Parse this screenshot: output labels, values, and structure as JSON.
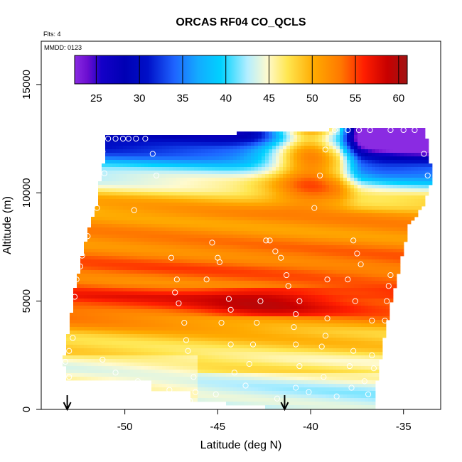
{
  "chart_data": {
    "type": "heatmap",
    "title": "ORCAS RF04 CO_QCLS",
    "flights_label": "Flts: 4",
    "date_label": "MMDD: 0123",
    "xlabel": "Latitude (deg N)",
    "ylabel": "Altitude (m)",
    "xlim": [
      -54.5,
      -33.0
    ],
    "ylim": [
      0,
      17000
    ],
    "x_ticks": [
      -50,
      -45,
      -40,
      -35
    ],
    "x_tick_labels": [
      "-50",
      "-45",
      "-40",
      "-35"
    ],
    "y_ticks": [
      0,
      5000,
      10000,
      15000
    ],
    "y_tick_labels": [
      "0",
      "5000",
      "10000",
      "15000"
    ],
    "colorbar": {
      "range": [
        22.5,
        61
      ],
      "ticks": [
        25,
        30,
        35,
        40,
        45,
        50,
        55,
        60
      ],
      "tick_labels": [
        "25",
        "30",
        "35",
        "40",
        "45",
        "50",
        "55",
        "60"
      ]
    },
    "arrows_x": [
      -53.1,
      -41.4
    ],
    "grid": false,
    "aircraft_obs": [
      {
        "x": -50.9,
        "y": 12500
      },
      {
        "x": -50.5,
        "y": 12500
      },
      {
        "x": -50.1,
        "y": 12500
      },
      {
        "x": -49.8,
        "y": 12500
      },
      {
        "x": -49.4,
        "y": 12500
      },
      {
        "x": -48.9,
        "y": 12500
      },
      {
        "x": -51.2,
        "y": 11900
      },
      {
        "x": -48.5,
        "y": 11800
      },
      {
        "x": -51.1,
        "y": 10900
      },
      {
        "x": -48.3,
        "y": 10800
      },
      {
        "x": -39.5,
        "y": 10800
      },
      {
        "x": -51.5,
        "y": 9300
      },
      {
        "x": -49.5,
        "y": 9200
      },
      {
        "x": -39.8,
        "y": 9300
      },
      {
        "x": -39.2,
        "y": 12000
      },
      {
        "x": -38.7,
        "y": 12900
      },
      {
        "x": -38.0,
        "y": 12900
      },
      {
        "x": -37.4,
        "y": 12900
      },
      {
        "x": -36.8,
        "y": 12900
      },
      {
        "x": -35.7,
        "y": 12900
      },
      {
        "x": -35.0,
        "y": 12900
      },
      {
        "x": -34.4,
        "y": 12900
      },
      {
        "x": -33.9,
        "y": 11800
      },
      {
        "x": -33.7,
        "y": 10800
      },
      {
        "x": -52.0,
        "y": 8000
      },
      {
        "x": -52.3,
        "y": 7100
      },
      {
        "x": -52.4,
        "y": 6600
      },
      {
        "x": -52.6,
        "y": 6000
      },
      {
        "x": -52.7,
        "y": 5200
      },
      {
        "x": -47.5,
        "y": 7000
      },
      {
        "x": -45.3,
        "y": 7700
      },
      {
        "x": -45.0,
        "y": 7000
      },
      {
        "x": -44.9,
        "y": 6800
      },
      {
        "x": -45.6,
        "y": 6000
      },
      {
        "x": -42.4,
        "y": 7800
      },
      {
        "x": -42.2,
        "y": 7800
      },
      {
        "x": -41.9,
        "y": 7300
      },
      {
        "x": -41.6,
        "y": 7000
      },
      {
        "x": -37.7,
        "y": 7800
      },
      {
        "x": -37.5,
        "y": 7200
      },
      {
        "x": -37.3,
        "y": 6700
      },
      {
        "x": -47.2,
        "y": 6000
      },
      {
        "x": -47.3,
        "y": 5400
      },
      {
        "x": -47.1,
        "y": 4900
      },
      {
        "x": -44.4,
        "y": 5100
      },
      {
        "x": -44.3,
        "y": 4600
      },
      {
        "x": -42.7,
        "y": 5000
      },
      {
        "x": -42.9,
        "y": 4000
      },
      {
        "x": -41.3,
        "y": 6200
      },
      {
        "x": -41.2,
        "y": 5700
      },
      {
        "x": -40.6,
        "y": 5000
      },
      {
        "x": -40.8,
        "y": 4400
      },
      {
        "x": -40.9,
        "y": 3800
      },
      {
        "x": -39.1,
        "y": 6000
      },
      {
        "x": -38.0,
        "y": 6000
      },
      {
        "x": -37.6,
        "y": 5000
      },
      {
        "x": -36.7,
        "y": 4100
      },
      {
        "x": -35.7,
        "y": 6200
      },
      {
        "x": -35.8,
        "y": 5700
      },
      {
        "x": -35.9,
        "y": 5000
      },
      {
        "x": -36.0,
        "y": 4100
      },
      {
        "x": -39.1,
        "y": 4200
      },
      {
        "x": -39.2,
        "y": 3400
      },
      {
        "x": -40.8,
        "y": 3000
      },
      {
        "x": -39.4,
        "y": 2900
      },
      {
        "x": -43.1,
        "y": 3000
      },
      {
        "x": -44.3,
        "y": 3000
      },
      {
        "x": -44.8,
        "y": 4000
      },
      {
        "x": -46.8,
        "y": 4000
      },
      {
        "x": -46.7,
        "y": 3200
      },
      {
        "x": -46.6,
        "y": 2700
      },
      {
        "x": -52.8,
        "y": 3300
      },
      {
        "x": -53.0,
        "y": 2700
      },
      {
        "x": -53.2,
        "y": 2200
      },
      {
        "x": -53.0,
        "y": 1500
      },
      {
        "x": -51.2,
        "y": 2300
      },
      {
        "x": -50.5,
        "y": 1700
      },
      {
        "x": -49.3,
        "y": 1300
      },
      {
        "x": -46.3,
        "y": 1500
      },
      {
        "x": -44.1,
        "y": 1700
      },
      {
        "x": -43.3,
        "y": 2100
      },
      {
        "x": -40.6,
        "y": 2000
      },
      {
        "x": -39.3,
        "y": 1500
      },
      {
        "x": -37.9,
        "y": 2000
      },
      {
        "x": -37.1,
        "y": 1300
      },
      {
        "x": -36.6,
        "y": 1900
      },
      {
        "x": -36.7,
        "y": 2500
      },
      {
        "x": -37.7,
        "y": 2700
      },
      {
        "x": -47.6,
        "y": 900
      },
      {
        "x": -46.2,
        "y": 800
      },
      {
        "x": -45.1,
        "y": 700
      },
      {
        "x": -43.5,
        "y": 1100
      },
      {
        "x": -40.8,
        "y": 1000
      },
      {
        "x": -40.1,
        "y": 800
      },
      {
        "x": -38.6,
        "y": 600
      },
      {
        "x": -37.8,
        "y": 1000
      },
      {
        "x": -36.9,
        "y": 700
      },
      {
        "x": -46.5,
        "y": 400
      },
      {
        "x": -41.8,
        "y": 500
      }
    ]
  }
}
